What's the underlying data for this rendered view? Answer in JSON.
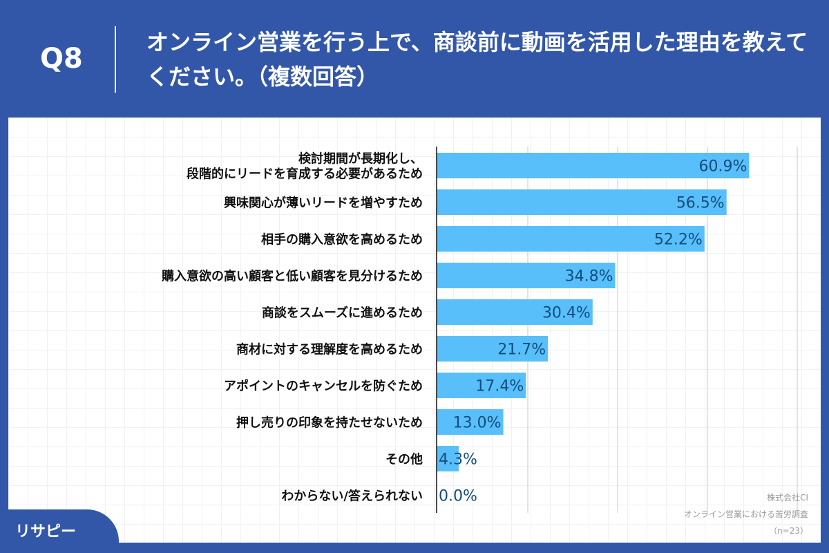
{
  "header": {
    "question": "Q8",
    "title": "オンライン営業を行う上で、商談前に動画を活用した理由を教えてください。（複数回答）"
  },
  "chart_data": {
    "type": "bar",
    "orientation": "horizontal",
    "categories": [
      "検討期間が長期化し、\n段階的にリードを育成する必要があるため",
      "興味関心が薄いリードを増やすため",
      "相手の購入意欲を高めるため",
      "購入意欲の高い顧客と低い顧客を見分けるため",
      "商談をスムーズに進めるため",
      "商材に対する理解度を高めるため",
      "アポイントのキャンセルを防ぐため",
      "押し売りの印象を持たせないため",
      "その他",
      "わからない/答えられない"
    ],
    "values": [
      60.9,
      56.5,
      52.2,
      34.8,
      30.4,
      21.7,
      17.4,
      13.0,
      4.3,
      0.0
    ],
    "data_labels": [
      "60.9%",
      "56.5%",
      "52.2%",
      "34.8%",
      "30.4%",
      "21.7%",
      "17.4%",
      "13.0%",
      "4.3%",
      "0.0%"
    ],
    "xlim": [
      0,
      70
    ],
    "grid": true,
    "bar_color": "#58bffa",
    "label_color": "#124d7e"
  },
  "credit": {
    "company": "株式会社CI",
    "survey": "オンライン営業における苦労調査",
    "n": "（n=23）"
  },
  "logo": {
    "text": "リサピー"
  }
}
